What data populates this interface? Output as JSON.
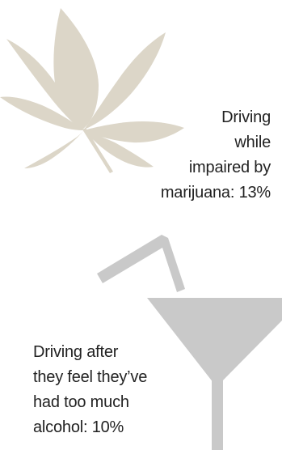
{
  "colors": {
    "leaf": "#dcd6c8",
    "glass": "#c9c9c9",
    "text": "#222222"
  },
  "icons": {
    "marijuana": "marijuana-leaf-icon",
    "alcohol": "cocktail-glass-icon"
  },
  "stats": {
    "marijuana": {
      "lines": [
        "Driving",
        "while",
        "impaired by",
        "marijuana: 13%"
      ],
      "percent": 13
    },
    "alcohol": {
      "lines": [
        "Driving after",
        "they feel they’ve",
        "had too much",
        "alcohol: 10%"
      ],
      "percent": 10
    }
  }
}
